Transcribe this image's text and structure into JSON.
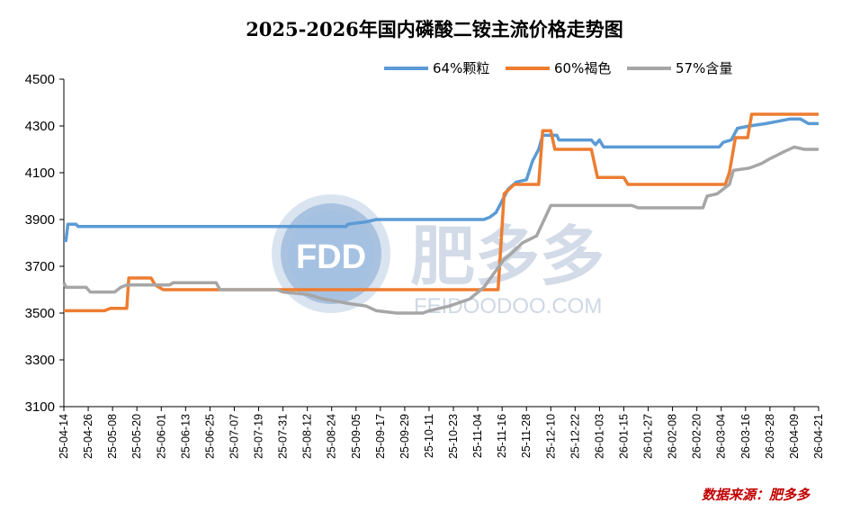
{
  "chart_data": {
    "type": "line",
    "title": "2025-2026年国内磷酸二铵主流价格走势图",
    "source": "数据来源：肥多多",
    "watermark": {
      "logo": "FDD",
      "name": "肥多多",
      "site": "FEIDOODOO.COM"
    },
    "ylim": [
      3100,
      4500
    ],
    "yticks": [
      3100,
      3300,
      3500,
      3700,
      3900,
      4100,
      4300,
      4500
    ],
    "x_range": [
      "2025-04-14",
      "2026-04-21"
    ],
    "xticks": [
      "25-04-14",
      "25-04-26",
      "25-05-08",
      "25-05-20",
      "25-06-01",
      "25-06-13",
      "25-06-25",
      "25-07-07",
      "25-07-19",
      "25-07-31",
      "25-08-12",
      "25-08-24",
      "25-09-05",
      "25-09-17",
      "25-09-29",
      "25-10-11",
      "25-10-23",
      "25-11-04",
      "25-11-16",
      "25-11-28",
      "25-12-10",
      "25-12-22",
      "26-01-03",
      "26-01-15",
      "26-01-27",
      "26-02-08",
      "26-02-20",
      "26-03-04",
      "26-03-16",
      "26-03-28",
      "26-04-09",
      "26-04-21"
    ],
    "grid": false,
    "legend_position": "top-right",
    "series": [
      {
        "name": "64%颗粒",
        "color": "#5b9bd5",
        "points": [
          [
            "2025-04-14",
            3810
          ],
          [
            "2025-04-15",
            3810
          ],
          [
            "2025-04-16",
            3880
          ],
          [
            "2025-04-20",
            3880
          ],
          [
            "2025-04-21",
            3870
          ],
          [
            "2025-08-31",
            3870
          ],
          [
            "2025-09-01",
            3880
          ],
          [
            "2025-09-10",
            3890
          ],
          [
            "2025-09-15",
            3900
          ],
          [
            "2025-11-07",
            3900
          ],
          [
            "2025-11-10",
            3910
          ],
          [
            "2025-11-13",
            3930
          ],
          [
            "2025-11-16",
            3980
          ],
          [
            "2025-11-19",
            4030
          ],
          [
            "2025-11-23",
            4060
          ],
          [
            "2025-11-28",
            4070
          ],
          [
            "2025-12-01",
            4150
          ],
          [
            "2025-12-04",
            4200
          ],
          [
            "2025-12-06",
            4260
          ],
          [
            "2025-12-13",
            4260
          ],
          [
            "2025-12-14",
            4240
          ],
          [
            "2025-12-30",
            4240
          ],
          [
            "2026-01-01",
            4220
          ],
          [
            "2026-01-03",
            4240
          ],
          [
            "2026-01-05",
            4210
          ],
          [
            "2026-03-03",
            4210
          ],
          [
            "2026-03-05",
            4230
          ],
          [
            "2026-03-09",
            4240
          ],
          [
            "2026-03-12",
            4290
          ],
          [
            "2026-03-18",
            4300
          ],
          [
            "2026-03-26",
            4310
          ],
          [
            "2026-04-01",
            4320
          ],
          [
            "2026-04-07",
            4330
          ],
          [
            "2026-04-12",
            4330
          ],
          [
            "2026-04-16",
            4310
          ],
          [
            "2026-04-21",
            4310
          ]
        ]
      },
      {
        "name": "60%褐色",
        "color": "#ed7d31",
        "points": [
          [
            "2025-04-14",
            3510
          ],
          [
            "2025-05-04",
            3510
          ],
          [
            "2025-05-07",
            3520
          ],
          [
            "2025-05-15",
            3520
          ],
          [
            "2025-05-16",
            3650
          ],
          [
            "2025-05-27",
            3650
          ],
          [
            "2025-05-29",
            3620
          ],
          [
            "2025-06-02",
            3600
          ],
          [
            "2025-11-14",
            3600
          ],
          [
            "2025-11-17",
            4010
          ],
          [
            "2025-11-22",
            4050
          ],
          [
            "2025-12-04",
            4050
          ],
          [
            "2025-12-06",
            4280
          ],
          [
            "2025-12-10",
            4280
          ],
          [
            "2025-12-12",
            4200
          ],
          [
            "2025-12-30",
            4200
          ],
          [
            "2026-01-02",
            4080
          ],
          [
            "2026-01-15",
            4080
          ],
          [
            "2026-01-17",
            4050
          ],
          [
            "2026-03-06",
            4050
          ],
          [
            "2026-03-08",
            4100
          ],
          [
            "2026-03-11",
            4250
          ],
          [
            "2026-03-17",
            4250
          ],
          [
            "2026-03-19",
            4350
          ],
          [
            "2026-04-21",
            4350
          ]
        ]
      },
      {
        "name": "57%含量",
        "color": "#a6a6a6",
        "points": [
          [
            "2025-04-14",
            3630
          ],
          [
            "2025-04-15",
            3610
          ],
          [
            "2025-04-25",
            3610
          ],
          [
            "2025-04-27",
            3590
          ],
          [
            "2025-05-09",
            3590
          ],
          [
            "2025-05-12",
            3610
          ],
          [
            "2025-05-15",
            3620
          ],
          [
            "2025-06-05",
            3620
          ],
          [
            "2025-06-07",
            3630
          ],
          [
            "2025-06-28",
            3630
          ],
          [
            "2025-06-30",
            3600
          ],
          [
            "2025-07-28",
            3600
          ],
          [
            "2025-07-31",
            3590
          ],
          [
            "2025-08-12",
            3580
          ],
          [
            "2025-08-20",
            3560
          ],
          [
            "2025-09-02",
            3540
          ],
          [
            "2025-09-10",
            3530
          ],
          [
            "2025-09-15",
            3510
          ],
          [
            "2025-09-25",
            3500
          ],
          [
            "2025-10-01",
            3500
          ],
          [
            "2025-10-08",
            3500
          ],
          [
            "2025-10-11",
            3510
          ],
          [
            "2025-10-21",
            3530
          ],
          [
            "2025-10-31",
            3560
          ],
          [
            "2025-11-07",
            3610
          ],
          [
            "2025-11-17",
            3730
          ],
          [
            "2025-11-20",
            3750
          ],
          [
            "2025-11-26",
            3800
          ],
          [
            "2025-12-03",
            3830
          ],
          [
            "2025-12-10",
            3960
          ],
          [
            "2025-12-25",
            3960
          ],
          [
            "2026-01-02",
            3960
          ],
          [
            "2026-01-19",
            3960
          ],
          [
            "2026-01-22",
            3950
          ],
          [
            "2026-02-23",
            3950
          ],
          [
            "2026-02-25",
            4000
          ],
          [
            "2026-03-02",
            4010
          ],
          [
            "2026-03-08",
            4050
          ],
          [
            "2026-03-10",
            4110
          ],
          [
            "2026-03-18",
            4120
          ],
          [
            "2026-03-24",
            4140
          ],
          [
            "2026-03-28",
            4160
          ],
          [
            "2026-04-04",
            4190
          ],
          [
            "2026-04-09",
            4210
          ],
          [
            "2026-04-14",
            4200
          ],
          [
            "2026-04-21",
            4200
          ]
        ]
      }
    ]
  }
}
